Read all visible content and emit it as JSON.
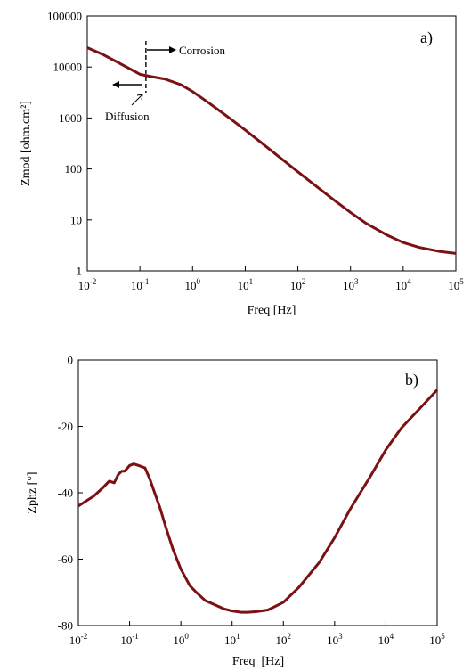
{
  "chart_data": [
    {
      "type": "line",
      "panel_label": "a)",
      "xlabel": "Freq [Hz]",
      "ylabel": "Zmod [ohm.cm²]",
      "xscale": "log",
      "yscale": "log",
      "xlim": [
        0.01,
        100000
      ],
      "ylim": [
        1,
        100000
      ],
      "x_ticks": [
        {
          "value": 0.01,
          "base": "10",
          "exp": "-2"
        },
        {
          "value": 0.1,
          "base": "10",
          "exp": "-1"
        },
        {
          "value": 1,
          "base": "10",
          "exp": "0"
        },
        {
          "value": 10,
          "base": "10",
          "exp": "1"
        },
        {
          "value": 100,
          "base": "10",
          "exp": "2"
        },
        {
          "value": 1000,
          "base": "10",
          "exp": "3"
        },
        {
          "value": 10000,
          "base": "10",
          "exp": "4"
        },
        {
          "value": 100000,
          "base": "10",
          "exp": "5"
        }
      ],
      "y_ticks": [
        {
          "value": 1,
          "label": "1"
        },
        {
          "value": 10,
          "label": "10"
        },
        {
          "value": 100,
          "label": "100"
        },
        {
          "value": 1000,
          "label": "1000"
        },
        {
          "value": 10000,
          "label": "10000"
        },
        {
          "value": 100000,
          "label": "100000"
        }
      ],
      "grid": false,
      "series": [
        {
          "color": "#7b1113",
          "x": [
            0.01,
            0.02,
            0.04,
            0.07,
            0.1,
            0.15,
            0.3,
            0.6,
            1,
            2,
            5,
            10,
            20,
            50,
            100,
            200,
            500,
            1000,
            2000,
            5000,
            10000,
            20000,
            50000,
            100000
          ],
          "y": [
            24000,
            17500,
            12000,
            8800,
            7200,
            6600,
            5800,
            4500,
            3300,
            2000,
            1000,
            580,
            330,
            155,
            88,
            50,
            24,
            14,
            8.5,
            5.0,
            3.6,
            2.9,
            2.4,
            2.2
          ]
        }
      ],
      "annotations": {
        "corrosion": "Corrosion",
        "diffusion": "Diffusion",
        "divider_freq": 0.13
      }
    },
    {
      "type": "line",
      "panel_label": "b)",
      "xlabel": "Freq  [Hz]",
      "ylabel": "Zphz [°]",
      "xscale": "log",
      "yscale": "linear",
      "xlim": [
        0.01,
        100000
      ],
      "ylim": [
        -80,
        0
      ],
      "x_ticks": [
        {
          "value": 0.01,
          "base": "10",
          "exp": "-2"
        },
        {
          "value": 0.1,
          "base": "10",
          "exp": "-1"
        },
        {
          "value": 1,
          "base": "10",
          "exp": "0"
        },
        {
          "value": 10,
          "base": "10",
          "exp": "1"
        },
        {
          "value": 100,
          "base": "10",
          "exp": "2"
        },
        {
          "value": 1000,
          "base": "10",
          "exp": "3"
        },
        {
          "value": 10000,
          "base": "10",
          "exp": "4"
        },
        {
          "value": 100000,
          "base": "10",
          "exp": "5"
        }
      ],
      "y_ticks": [
        {
          "value": 0,
          "label": "0"
        },
        {
          "value": -20,
          "label": "-20"
        },
        {
          "value": -40,
          "label": "-40"
        },
        {
          "value": -60,
          "label": "-60"
        },
        {
          "value": -80,
          "label": "-80"
        }
      ],
      "grid": false,
      "series": [
        {
          "color": "#7b1113",
          "x": [
            0.01,
            0.02,
            0.03,
            0.04,
            0.05,
            0.06,
            0.07,
            0.08,
            0.1,
            0.12,
            0.15,
            0.2,
            0.25,
            0.3,
            0.4,
            0.5,
            0.7,
            1,
            1.5,
            2,
            3,
            5,
            7,
            10,
            15,
            20,
            30,
            50,
            100,
            200,
            500,
            1000,
            2000,
            5000,
            10000,
            20000,
            50000,
            100000
          ],
          "y": [
            -44,
            -41,
            -38.5,
            -36.5,
            -37,
            -34.5,
            -33.5,
            -33.5,
            -31.8,
            -31.3,
            -31.8,
            -32.5,
            -36,
            -39.5,
            -45,
            -50,
            -57,
            -63,
            -68,
            -70,
            -72.5,
            -74,
            -75,
            -75.6,
            -76,
            -76,
            -75.8,
            -75.3,
            -73,
            -68.5,
            -61,
            -53.5,
            -45,
            -35,
            -27,
            -20.5,
            -14,
            -9
          ]
        }
      ]
    }
  ]
}
